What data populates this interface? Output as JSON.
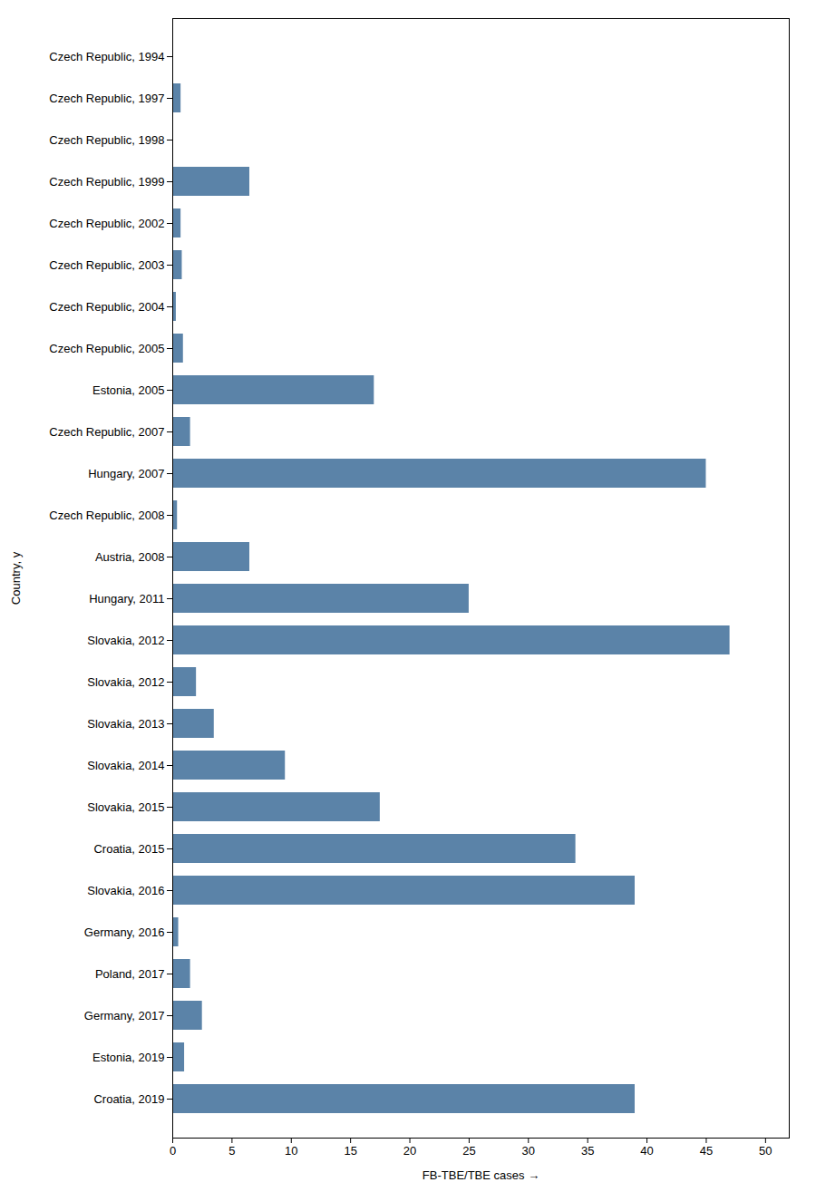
{
  "chart_data": {
    "type": "bar",
    "orientation": "horizontal",
    "xlabel": "FB-TBE/TBE cases",
    "ylabel": "Country, y",
    "categories": [
      "Czech Republic, 1994",
      "Czech Republic, 1997",
      "Czech Republic, 1998",
      "Czech Republic, 1999",
      "Czech Republic, 2002",
      "Czech Republic, 2003",
      "Czech Republic, 2004",
      "Czech Republic, 2005",
      "Estonia, 2005",
      "Czech Republic, 2007",
      "Hungary, 2007",
      "Czech Republic, 2008",
      "Austria, 2008",
      "Hungary, 2011",
      "Slovakia, 2012",
      "Slovakia, 2012",
      "Slovakia, 2013",
      "Slovakia, 2014",
      "Slovakia, 2015",
      "Croatia, 2015",
      "Slovakia, 2016",
      "Germany, 2016",
      "Poland, 2017",
      "Germany, 2017",
      "Estonia, 2019",
      "Croatia, 2019"
    ],
    "values": [
      0.0,
      0.7,
      0.0,
      6.5,
      0.7,
      0.8,
      0.3,
      0.9,
      17.0,
      1.5,
      45.0,
      0.4,
      6.5,
      25.0,
      47.0,
      2.0,
      3.5,
      9.5,
      17.5,
      34.0,
      39.0,
      0.5,
      1.5,
      2.5,
      1.0,
      39.0
    ],
    "color": "#5b83a8",
    "xlim": [
      0,
      52
    ],
    "xticks": [
      0,
      5,
      10,
      15,
      20,
      25,
      30,
      35,
      40,
      45,
      50
    ],
    "grid": false
  }
}
